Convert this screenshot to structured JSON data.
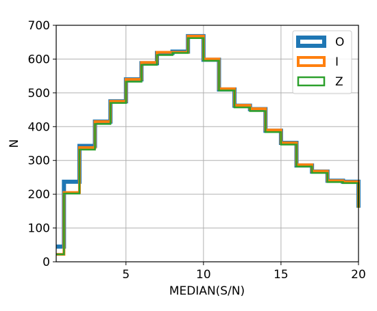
{
  "chart_data": {
    "type": "step",
    "xlabel": "MEDIAN(S/N)",
    "ylabel": "N",
    "xlim": [
      0.5,
      20
    ],
    "ylim": [
      0,
      700
    ],
    "xticks": [
      5,
      10,
      15,
      20
    ],
    "yticks": [
      0,
      100,
      200,
      300,
      400,
      500,
      600,
      700
    ],
    "grid": true,
    "legend_position": "top-right",
    "bin_edges": [
      0.5,
      1,
      2,
      3,
      4,
      5,
      6,
      7,
      8,
      9,
      10,
      11,
      12,
      13,
      14,
      15,
      16,
      17,
      18,
      19,
      20
    ],
    "series": [
      {
        "name": "O",
        "color": "#1f77b4",
        "line_width": "thick",
        "counts": [
          45,
          237,
          343,
          415,
          475,
          540,
          588,
          618,
          622,
          668,
          598,
          510,
          462,
          452,
          388,
          352,
          285,
          267,
          240,
          237
        ]
      },
      {
        "name": "I",
        "color": "#ff7f0e",
        "line_width": "medium",
        "counts": [
          22,
          205,
          338,
          415,
          475,
          540,
          590,
          620,
          620,
          668,
          600,
          512,
          463,
          453,
          390,
          352,
          287,
          268,
          240,
          237
        ]
      },
      {
        "name": "Z",
        "color": "#2ca02c",
        "line_width": "thin",
        "counts": [
          22,
          202,
          332,
          408,
          470,
          533,
          583,
          612,
          618,
          662,
          595,
          507,
          457,
          446,
          384,
          347,
          282,
          263,
          236,
          233
        ]
      }
    ],
    "final_drop": 160
  }
}
